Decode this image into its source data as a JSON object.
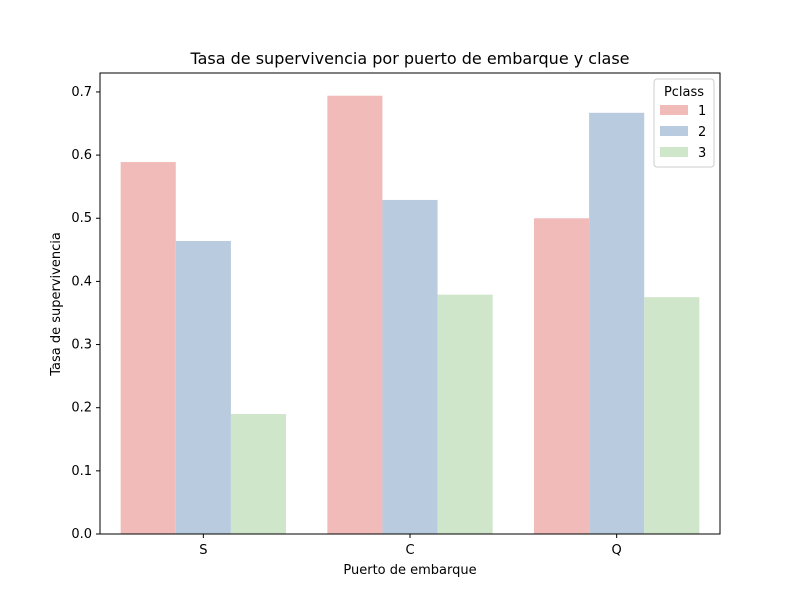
{
  "chart_data": {
    "type": "bar",
    "title": "Tasa de supervivencia por puerto de embarque y clase",
    "xlabel": "Puerto de embarque",
    "ylabel": "Tasa de supervivencia",
    "categories": [
      "S",
      "C",
      "Q"
    ],
    "ylim": [
      0,
      0.73
    ],
    "yticks": [
      0.0,
      0.1,
      0.2,
      0.3,
      0.4,
      0.5,
      0.6,
      0.7
    ],
    "ytick_labels": [
      "0.0",
      "0.1",
      "0.2",
      "0.3",
      "0.4",
      "0.5",
      "0.6",
      "0.7"
    ],
    "legend": {
      "title": "Pclass",
      "placement": "top-right"
    },
    "series": [
      {
        "name": "1",
        "color": "#f1bbba",
        "values": [
          0.589,
          0.694,
          0.5
        ]
      },
      {
        "name": "2",
        "color": "#b8cbdf",
        "values": [
          0.464,
          0.529,
          0.667
        ]
      },
      {
        "name": "3",
        "color": "#d0e6ca",
        "values": [
          0.19,
          0.379,
          0.375
        ]
      }
    ],
    "grid": false
  }
}
